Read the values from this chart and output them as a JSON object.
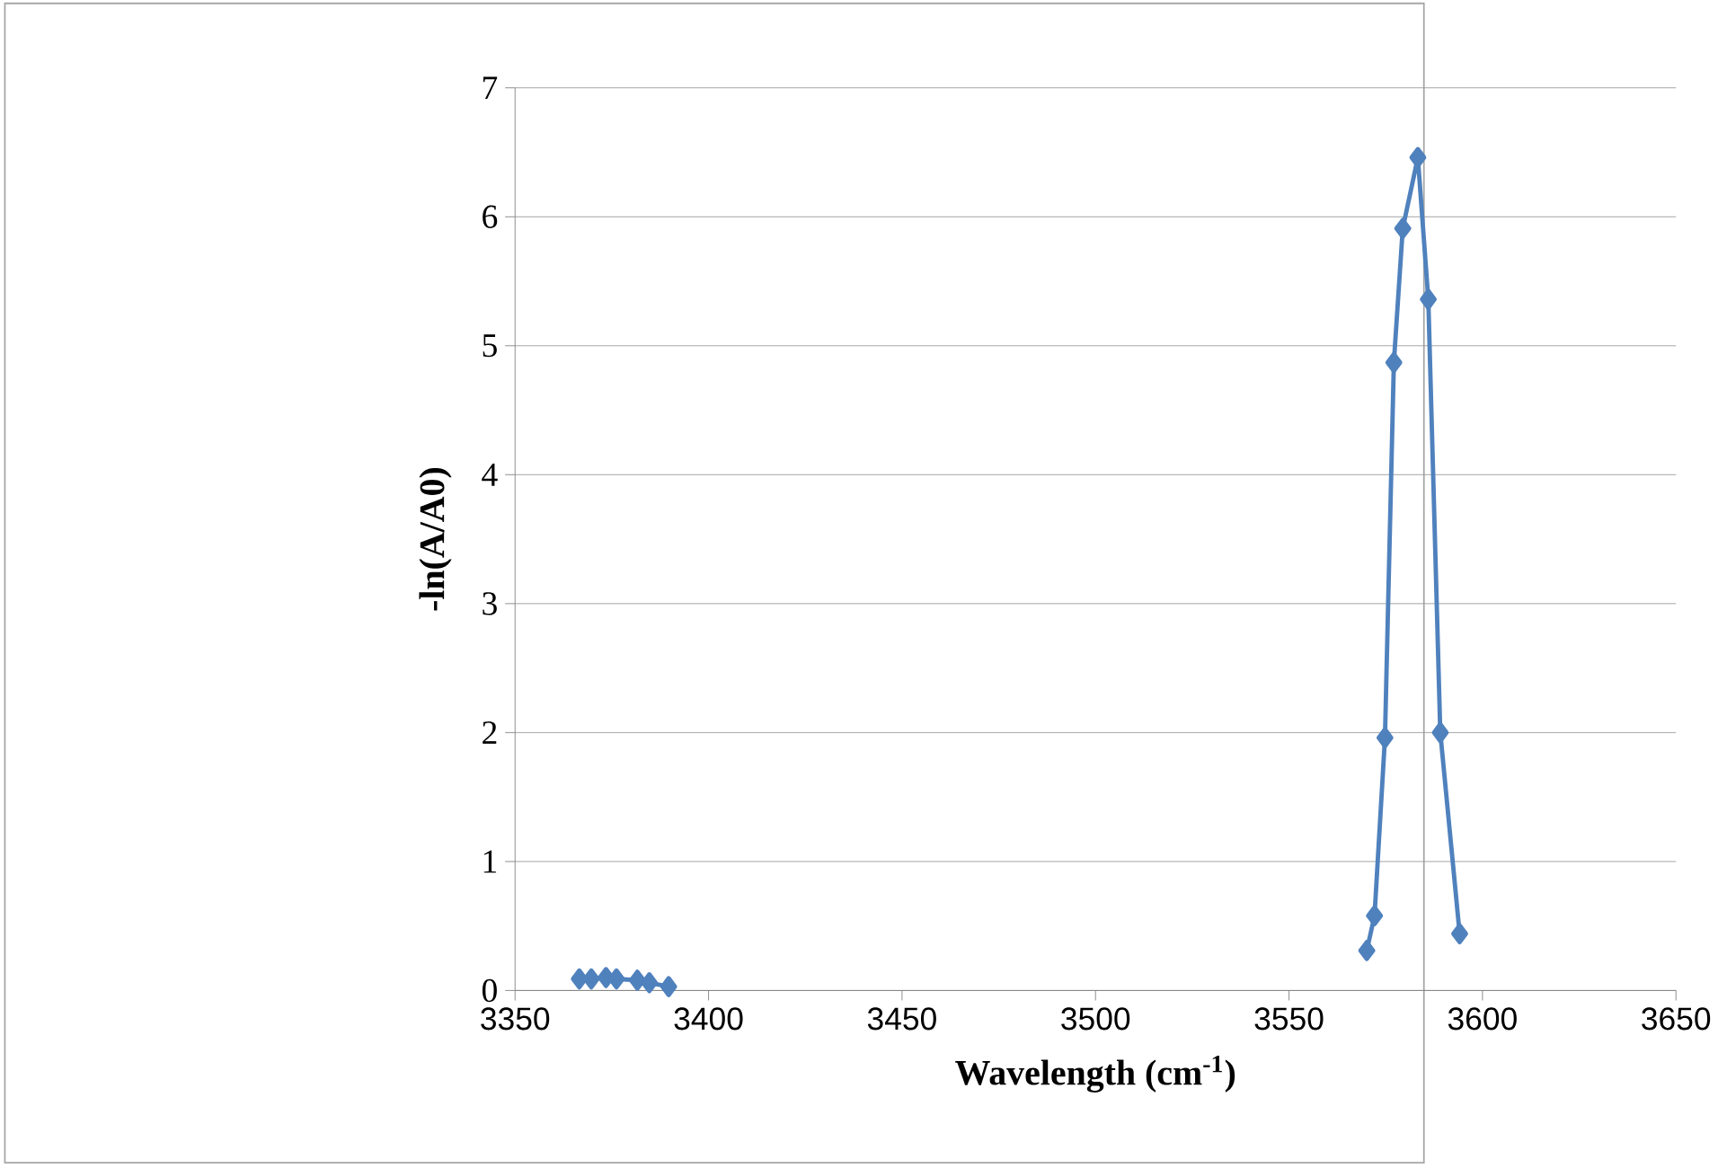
{
  "chart_data": {
    "type": "line",
    "xlabel": "Wavelength (cm$^{-1}$)",
    "ylabel": "-ln(A/A0)",
    "xlim": [
      3350,
      3650
    ],
    "xticks": [
      3350,
      3400,
      3450,
      3500,
      3550,
      3600,
      3650
    ],
    "ylim": [
      0,
      7
    ],
    "yticks": [
      0,
      1,
      2,
      3,
      4,
      5,
      6,
      7
    ],
    "grid": "y",
    "marker": "diamond",
    "line_style": "solid",
    "series": [
      {
        "color": "#4f81bd",
        "x": [
          3366.6,
          3369.7,
          3373.5,
          3376.2,
          3381.6,
          3384.7,
          3389.7
        ],
        "values": [
          0.09,
          0.09,
          0.1,
          0.09,
          0.08,
          0.06,
          0.03
        ]
      },
      {
        "color": "#4f81bd",
        "x": [
          3570.1,
          3572.1,
          3574.8,
          3577.1,
          3579.4,
          3583.3,
          3586.0,
          3589.1,
          3594.1
        ],
        "values": [
          0.31,
          0.58,
          1.96,
          4.87,
          5.91,
          6.46,
          5.36,
          2.0,
          0.44
        ]
      }
    ]
  }
}
